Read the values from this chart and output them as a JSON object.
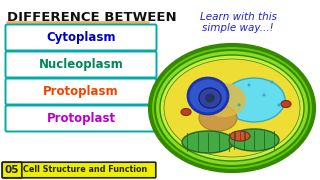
{
  "bg_color": "#ffffff",
  "title_text": "DIFFERENCE BETWEEN",
  "title_color": "#111111",
  "underline_color": "#ffaa55",
  "learn_line1": "Learn with this",
  "learn_line2": "simple way...!",
  "learn_color": "#2222cc",
  "boxes": [
    {
      "label": "Cytoplasm",
      "text_color": "#0000cc",
      "border": "#00aaaa"
    },
    {
      "label": "Nucleoplasm",
      "text_color": "#008855",
      "border": "#00aaaa"
    },
    {
      "label": "Protoplasm",
      "text_color": "#ee4400",
      "border": "#00aaaa"
    },
    {
      "label": "Protoplast",
      "text_color": "#bb00cc",
      "border": "#00aaaa"
    }
  ],
  "badge_num": "05",
  "badge_text": "Cell Structure and Function",
  "badge_bg": "#eeee00",
  "badge_border": "#222222",
  "cell_outer_color": "#66cc00",
  "cell_outer_border": "#338800",
  "cell_mid_color": "#88dd22",
  "cell_inner_color": "#ccee44",
  "cell_cytoplasm": "#eedd33",
  "vacuole_color": "#66ddee",
  "vacuole_border": "#33aacc",
  "nucleus_outer": "#3355cc",
  "nucleus_mid": "#1a33aa",
  "nucleus_inner": "#334499",
  "golgi_color": "#ddbb44",
  "golgi_border": "#aa8822",
  "er_color": "#cc9944",
  "chloro_color": "#44aa44",
  "chloro_border": "#226622",
  "mito_color": "#cc5533",
  "mito_border": "#882211",
  "small_mito_color": "#bb4422"
}
